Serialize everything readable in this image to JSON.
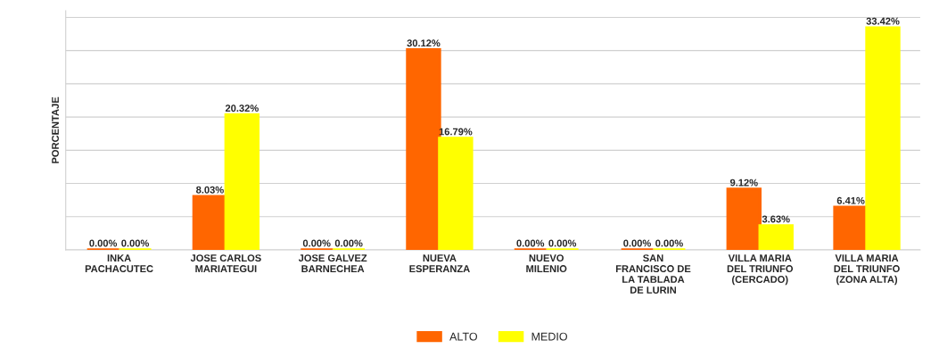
{
  "chart_data": {
    "type": "bar",
    "ylabel": "PORCENTAJE",
    "categories": [
      "INKA\nPACHACUTEC",
      "JOSE CARLOS\nMARIATEGUI",
      "JOSE GALVEZ\nBARNECHEA",
      "NUEVA\nESPERANZA",
      "NUEVO\nMILENIO",
      "SAN\nFRANCISCO DE\nLA TABLADA\nDE LURIN",
      "VILLA MARIA\nDEL TRIUNFO\n(CERCADO)",
      "VILLA MARIA\nDEL TRIUNFO\n(ZONA ALTA)"
    ],
    "series": [
      {
        "name": "ALTO",
        "color": "#ff6600",
        "values": [
          0,
          8.03,
          0,
          30.12,
          0,
          0,
          9.12,
          6.41
        ],
        "value_labels": [
          "0.00%",
          "8.03%",
          "0.00%",
          "30.12%",
          "0.00%",
          "0.00%",
          "9.12%",
          "6.41%"
        ]
      },
      {
        "name": "MEDIO",
        "color": "#ffff00",
        "values": [
          0,
          20.32,
          0,
          16.79,
          0,
          0,
          3.63,
          33.42
        ],
        "value_labels": [
          "0.00%",
          "20.32%",
          "0.00%",
          "16.79%",
          "0.00%",
          "0.00%",
          "3.63%",
          "33.42%"
        ]
      }
    ],
    "ylim": [
      0,
      36
    ],
    "yticks": [
      {
        "value": 0,
        "label": null
      },
      {
        "value": 5,
        "label": null
      },
      {
        "value": 10,
        "label": null
      },
      {
        "value": 15,
        "label": null
      },
      {
        "value": 20,
        "label": null
      },
      {
        "value": 25,
        "label": null
      },
      {
        "value": 30,
        "label": null
      },
      {
        "value": 35,
        "label": null
      }
    ],
    "tick_labels": "x",
    "grid": "y",
    "legend": "bottom"
  }
}
